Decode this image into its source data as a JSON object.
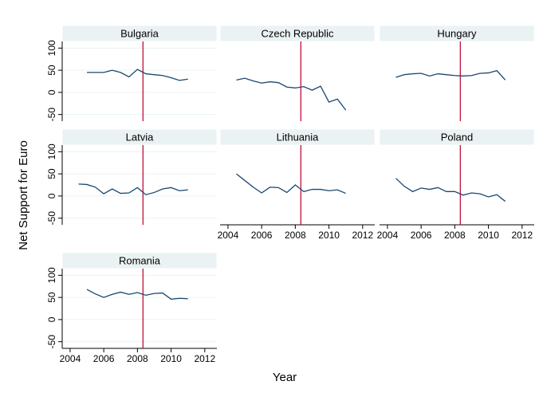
{
  "y_label": "Net Support for Euro",
  "x_label": "Year",
  "chart_data": [
    {
      "type": "line",
      "title": "Bulgaria",
      "x": [
        2005,
        2005.5,
        2006,
        2006.5,
        2007,
        2007.5,
        2008,
        2008.5,
        2009,
        2009.5,
        2010,
        2010.5,
        2011
      ],
      "series": [
        {
          "color": "#1a476f",
          "values": [
            45,
            45,
            45,
            50,
            45,
            35,
            52,
            42,
            40,
            38,
            33,
            27,
            30
          ]
        }
      ],
      "xlim": [
        2003.53,
        2012.72
      ],
      "ylim": [
        -65,
        115
      ],
      "yticks": [
        -50,
        0,
        50,
        100
      ],
      "grid": true,
      "reference_line": {
        "x": 2008.33,
        "color": "#c0103a"
      }
    },
    {
      "type": "line",
      "title": "Czech Republic",
      "x": [
        2004.5,
        2005,
        2005.5,
        2006,
        2006.5,
        2007,
        2007.5,
        2008,
        2008.5,
        2009,
        2009.5,
        2010,
        2010.5,
        2011
      ],
      "series": [
        {
          "color": "#1a476f",
          "values": [
            28,
            32,
            26,
            21,
            24,
            22,
            12,
            10,
            13,
            5,
            14,
            -22,
            -15,
            -40
          ]
        }
      ],
      "xlim": [
        2003.53,
        2012.72
      ],
      "ylim": [
        -65,
        115
      ],
      "grid": true,
      "reference_line": {
        "x": 2008.33,
        "color": "#c0103a"
      }
    },
    {
      "type": "line",
      "title": "Hungary",
      "x": [
        2004.5,
        2005,
        2005.5,
        2006,
        2006.5,
        2007,
        2007.5,
        2008,
        2008.5,
        2009,
        2009.5,
        2010,
        2010.5,
        2011
      ],
      "series": [
        {
          "color": "#1a476f",
          "values": [
            34,
            40,
            42,
            43,
            37,
            42,
            40,
            38,
            37,
            38,
            43,
            44,
            49,
            28
          ]
        }
      ],
      "xlim": [
        2003.53,
        2012.72
      ],
      "ylim": [
        -65,
        115
      ],
      "grid": true,
      "reference_line": {
        "x": 2008.33,
        "color": "#c0103a"
      }
    },
    {
      "type": "line",
      "title": "Latvia",
      "x": [
        2004.5,
        2005,
        2005.5,
        2006,
        2006.5,
        2007,
        2007.5,
        2008,
        2008.5,
        2009,
        2009.5,
        2010,
        2010.5,
        2011
      ],
      "series": [
        {
          "color": "#1a476f",
          "values": [
            27,
            26,
            20,
            5,
            16,
            6,
            7,
            19,
            3,
            8,
            16,
            19,
            12,
            14
          ]
        }
      ],
      "xlim": [
        2003.53,
        2012.72
      ],
      "ylim": [
        -65,
        115
      ],
      "yticks": [
        -50,
        0,
        50,
        100
      ],
      "grid": true,
      "reference_line": {
        "x": 2008.33,
        "color": "#c0103a"
      }
    },
    {
      "type": "line",
      "title": "Lithuania",
      "x": [
        2004.5,
        2005,
        2005.5,
        2006,
        2006.5,
        2007,
        2007.5,
        2008,
        2008.5,
        2009,
        2009.5,
        2010,
        2010.5,
        2011
      ],
      "series": [
        {
          "color": "#1a476f",
          "values": [
            50,
            35,
            20,
            7,
            20,
            19,
            8,
            25,
            10,
            15,
            15,
            12,
            14,
            6
          ]
        }
      ],
      "xlim": [
        2003.53,
        2012.72
      ],
      "ylim": [
        -65,
        115
      ],
      "xticks": [
        2004,
        2006,
        2008,
        2010,
        2012
      ],
      "grid": true,
      "reference_line": {
        "x": 2008.33,
        "color": "#c0103a"
      }
    },
    {
      "type": "line",
      "title": "Poland",
      "x": [
        2004.5,
        2005,
        2005.5,
        2006,
        2006.5,
        2007,
        2007.5,
        2008,
        2008.5,
        2009,
        2009.5,
        2010,
        2010.5,
        2011
      ],
      "series": [
        {
          "color": "#1a476f",
          "values": [
            40,
            22,
            10,
            18,
            15,
            19,
            10,
            10,
            2,
            7,
            5,
            -2,
            3,
            -12
          ]
        }
      ],
      "xlim": [
        2003.53,
        2012.72
      ],
      "ylim": [
        -65,
        115
      ],
      "xticks": [
        2004,
        2006,
        2008,
        2010,
        2012
      ],
      "grid": true,
      "reference_line": {
        "x": 2008.33,
        "color": "#c0103a"
      }
    },
    {
      "type": "line",
      "title": "Romania",
      "x": [
        2005,
        2005.5,
        2006,
        2006.5,
        2007,
        2007.5,
        2008,
        2008.5,
        2009,
        2009.5,
        2010,
        2010.5,
        2011
      ],
      "series": [
        {
          "color": "#1a476f",
          "values": [
            68,
            58,
            50,
            57,
            62,
            57,
            61,
            55,
            59,
            60,
            46,
            48,
            47
          ]
        }
      ],
      "xlim": [
        2003.53,
        2012.72
      ],
      "ylim": [
        -65,
        115
      ],
      "yticks": [
        -50,
        0,
        50,
        100
      ],
      "xticks": [
        2004,
        2006,
        2008,
        2010,
        2012
      ],
      "grid": true,
      "reference_line": {
        "x": 2008.33,
        "color": "#c0103a"
      }
    }
  ]
}
